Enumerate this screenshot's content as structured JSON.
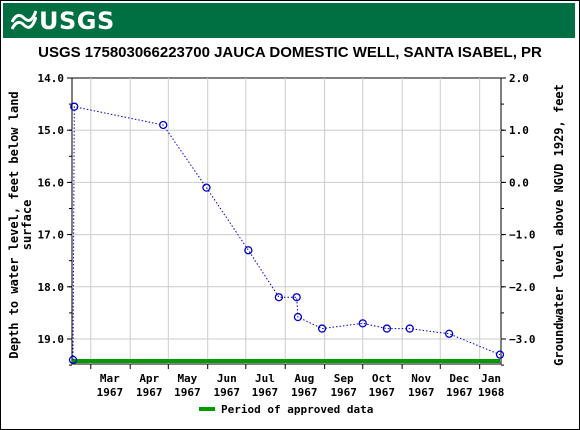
{
  "header": {
    "agency": "USGS"
  },
  "chart_data": {
    "type": "line",
    "title": "USGS 175803066223700 JAUCA DOMESTIC WELL, SANTA ISABEL, PR",
    "ylabel_left": [
      "Depth to water level, feet below land",
      "surface"
    ],
    "ylabel_right": "Groundwater level above NGVD 1929, feet",
    "ylim_left": [
      14.0,
      19.5
    ],
    "ylim_right_ticks": [
      "2.0",
      "1.0",
      "0.0",
      "−1.0",
      "−2.0",
      "−3.0"
    ],
    "yticks_left": [
      "14.0",
      "15.0",
      "16.0",
      "17.0",
      "18.0",
      "19.0"
    ],
    "x_month_labels": [
      {
        "month": "Mar",
        "year": "1967"
      },
      {
        "month": "Apr",
        "year": "1967"
      },
      {
        "month": "May",
        "year": "1967"
      },
      {
        "month": "Jun",
        "year": "1967"
      },
      {
        "month": "Jul",
        "year": "1967"
      },
      {
        "month": "Aug",
        "year": "1967"
      },
      {
        "month": "Sep",
        "year": "1967"
      },
      {
        "month": "Oct",
        "year": "1967"
      },
      {
        "month": "Nov",
        "year": "1967"
      },
      {
        "month": "Dec",
        "year": "1967"
      },
      {
        "month": "Jan",
        "year": "1968"
      }
    ],
    "series": [
      {
        "points": [
          {
            "date": "1967-02-15",
            "depth": 19.4
          },
          {
            "date": "1967-02-16",
            "depth": 14.55
          },
          {
            "date": "1967-04-27",
            "depth": 14.9
          },
          {
            "date": "1967-05-31",
            "depth": 16.1
          },
          {
            "date": "1967-07-03",
            "depth": 17.3
          },
          {
            "date": "1967-07-27",
            "depth": 18.2
          },
          {
            "date": "1967-08-10",
            "depth": 18.2
          },
          {
            "date": "1967-08-11",
            "depth": 18.58
          },
          {
            "date": "1967-08-30",
            "depth": 18.8
          },
          {
            "date": "1967-10-01",
            "depth": 18.7
          },
          {
            "date": "1967-10-20",
            "depth": 18.8
          },
          {
            "date": "1967-11-07",
            "depth": 18.8
          },
          {
            "date": "1967-12-08",
            "depth": 18.9
          },
          {
            "date": "1968-01-17",
            "depth": 19.3
          }
        ],
        "color": "#0000cc"
      }
    ],
    "approved_period": {
      "start": "1967-02-15",
      "end": "1968-01-17",
      "color": "#009900"
    },
    "legend": {
      "label": "Period of approved data",
      "placement": "bottom-center"
    },
    "grid": true
  }
}
